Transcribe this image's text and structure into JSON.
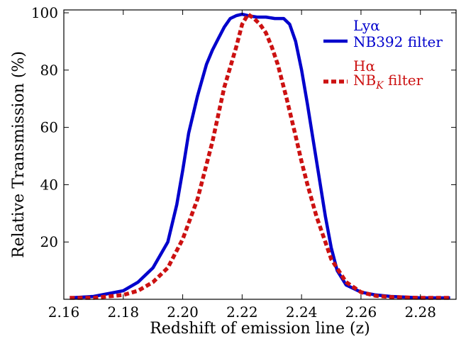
{
  "chart_data": {
    "type": "line",
    "title": "",
    "xlabel": "Redshift of emission line (z)",
    "ylabel": "Relative Transmission (%)",
    "xlim": [
      2.16,
      2.292
    ],
    "ylim": [
      0,
      101
    ],
    "xticks": [
      "2.16",
      "2.18",
      "2.20",
      "2.22",
      "2.24",
      "2.26",
      "2.28"
    ],
    "yticks": [
      "20",
      "40",
      "60",
      "80",
      "100"
    ],
    "grid": false,
    "legend_position": "top-right",
    "series": [
      {
        "name": "Lyα NB392 filter",
        "legend_line1": "Lyα",
        "legend_line2": "NB392 filter",
        "color": "#0000cc",
        "style": "solid",
        "x": [
          2.162,
          2.17,
          2.18,
          2.185,
          2.19,
          2.195,
          2.198,
          2.2,
          2.202,
          2.205,
          2.208,
          2.21,
          2.212,
          2.214,
          2.216,
          2.218,
          2.22,
          2.222,
          2.225,
          2.228,
          2.231,
          2.234,
          2.236,
          2.238,
          2.24,
          2.242,
          2.244,
          2.246,
          2.248,
          2.25,
          2.252,
          2.255,
          2.26,
          2.265,
          2.27,
          2.28,
          2.29
        ],
        "y": [
          0.5,
          1,
          3,
          6,
          11,
          20,
          33,
          45,
          58,
          71,
          82,
          87,
          91,
          95,
          98,
          99,
          99.5,
          99,
          98.5,
          98.5,
          98,
          98,
          96,
          90,
          80,
          68,
          55,
          42,
          29,
          18,
          10,
          5,
          2.5,
          1.5,
          1,
          0.5,
          0.5
        ]
      },
      {
        "name": "Hα NBK filter",
        "legend_line1": "Hα",
        "legend_line2": "NB",
        "legend_sub": "K",
        "legend_line2_suffix": " filter",
        "color": "#cc1111",
        "style": "dashed",
        "x": [
          2.162,
          2.17,
          2.18,
          2.185,
          2.19,
          2.195,
          2.2,
          2.205,
          2.21,
          2.214,
          2.218,
          2.22,
          2.222,
          2.224,
          2.226,
          2.228,
          2.23,
          2.232,
          2.235,
          2.238,
          2.24,
          2.242,
          2.245,
          2.248,
          2.25,
          2.255,
          2.26,
          2.265,
          2.27,
          2.28,
          2.29
        ],
        "y": [
          0.5,
          0.5,
          1.5,
          3,
          6,
          11,
          21,
          35,
          55,
          74,
          88,
          96,
          99.5,
          98,
          96,
          93,
          88,
          82,
          70,
          57,
          48,
          40,
          29,
          20,
          14,
          6,
          2.5,
          1.2,
          0.8,
          0.5,
          0.5
        ]
      }
    ]
  }
}
